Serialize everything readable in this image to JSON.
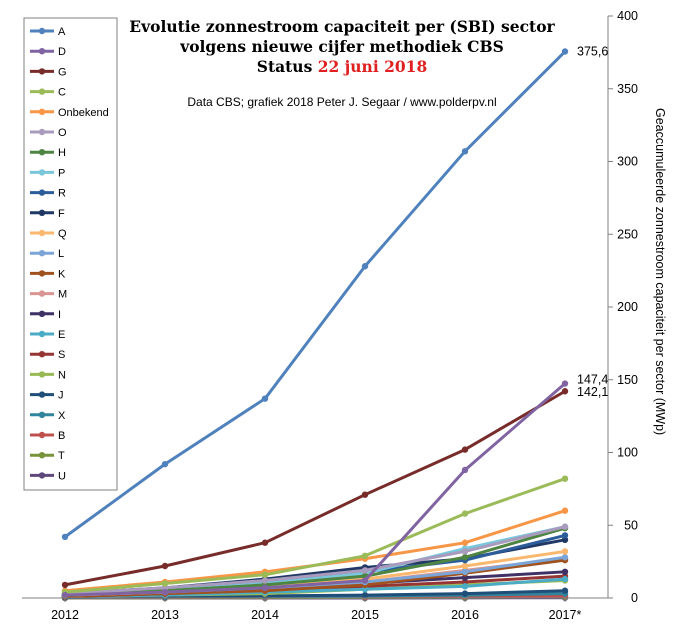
{
  "chart_data": {
    "type": "line",
    "title_line1": "Evolutie zonnestroom capaciteit per (SBI) sector",
    "title_line2": "volgens nieuwe cijfer methodiek CBS",
    "title_line3_prefix": "Status ",
    "title_line3_date": "22 juni 2018",
    "subtitle": "Data CBS; grafiek 2018 Peter J. Segaar / www.polderpv.nl",
    "ylabel": "Geaccumuleerde zonnestroom capaciteit per sector (MWp)",
    "xlabel": "",
    "x": [
      "2012",
      "2013",
      "2014",
      "2015",
      "2016",
      "2017*"
    ],
    "ylim": [
      0,
      400
    ],
    "yticks": [
      0,
      50,
      100,
      150,
      200,
      250,
      300,
      350,
      400
    ],
    "grid": false,
    "legend_position": "left",
    "colors": {
      "title_date": "#e02020",
      "axis": "#808080"
    },
    "series": [
      {
        "name": "A",
        "color": "#4f81bd",
        "values": [
          42,
          92,
          137,
          228,
          307,
          375.6
        ]
      },
      {
        "name": "D",
        "color": "#8064a2",
        "values": [
          2,
          4,
          7,
          12,
          88,
          147.4
        ]
      },
      {
        "name": "G",
        "color": "#772c2a",
        "values": [
          9,
          22,
          38,
          71,
          102,
          142.1
        ]
      },
      {
        "name": "C",
        "color": "#9bbb59",
        "values": [
          4,
          10,
          16,
          29,
          58,
          82
        ]
      },
      {
        "name": "Onbekend",
        "color": "#f79646",
        "values": [
          5,
          11,
          18,
          27,
          38,
          60
        ]
      },
      {
        "name": "O",
        "color": "#a99bbd",
        "values": [
          3,
          7,
          12,
          19,
          32,
          49
        ]
      },
      {
        "name": "H",
        "color": "#4e8542",
        "values": [
          2,
          5,
          9,
          15,
          28,
          48
        ]
      },
      {
        "name": "P",
        "color": "#7ac6da",
        "values": [
          2,
          5,
          10,
          17,
          34,
          49
        ]
      },
      {
        "name": "R",
        "color": "#2c5d9a",
        "values": [
          2,
          6,
          11,
          18,
          26,
          43
        ]
      },
      {
        "name": "F",
        "color": "#1f3864",
        "values": [
          3,
          7,
          13,
          21,
          27,
          40
        ]
      },
      {
        "name": "Q",
        "color": "#fab76e",
        "values": [
          2,
          4,
          8,
          13,
          22,
          32
        ]
      },
      {
        "name": "L",
        "color": "#7aa5d6",
        "values": [
          2,
          4,
          7,
          11,
          18,
          28
        ]
      },
      {
        "name": "K",
        "color": "#a0521e",
        "values": [
          1,
          3,
          5,
          9,
          17,
          26
        ]
      },
      {
        "name": "M",
        "color": "#d99591",
        "values": [
          2,
          4,
          7,
          11,
          19,
          27
        ]
      },
      {
        "name": "I",
        "color": "#3f3165",
        "values": [
          1,
          3,
          6,
          10,
          14,
          18
        ]
      },
      {
        "name": "E",
        "color": "#4bacc6",
        "values": [
          1,
          2,
          4,
          6,
          8,
          13
        ]
      },
      {
        "name": "S",
        "color": "#963634",
        "values": [
          1,
          2,
          5,
          8,
          11,
          15
        ]
      },
      {
        "name": "N",
        "color": "#98b954",
        "values": [
          1,
          2,
          3,
          6,
          9,
          12
        ]
      },
      {
        "name": "J",
        "color": "#1f4e79",
        "values": [
          0.5,
          1,
          1.5,
          2,
          3,
          5
        ]
      },
      {
        "name": "X",
        "color": "#31849b",
        "values": [
          0.3,
          0.6,
          1,
          1.5,
          2,
          3
        ]
      },
      {
        "name": "B",
        "color": "#c0504d",
        "values": [
          0.2,
          0.4,
          0.6,
          0.8,
          1,
          1.5
        ]
      },
      {
        "name": "T",
        "color": "#77933c",
        "values": [
          0.1,
          0.2,
          0.3,
          0.4,
          0.5,
          0.8
        ]
      },
      {
        "name": "U",
        "color": "#5f497a",
        "values": [
          0,
          0,
          0,
          0,
          0.1,
          0.2
        ]
      }
    ],
    "annotations": [
      {
        "series": "A",
        "text": "375,6"
      },
      {
        "series": "D",
        "text": "147,4"
      },
      {
        "series": "G",
        "text": "142,1"
      }
    ]
  }
}
